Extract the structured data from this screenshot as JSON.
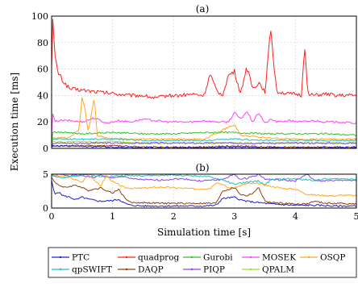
{
  "chart_data": [
    {
      "panel": "a",
      "type": "line",
      "title": "(a)",
      "xlabel": "",
      "ylabel": "Execution time [ms]",
      "xlim": [
        0,
        5
      ],
      "ylim": [
        0,
        100
      ],
      "xticks": [
        "0",
        "1",
        "2",
        "3",
        "4",
        "5"
      ],
      "xticks_visible": false,
      "yticks": [
        "0",
        "20",
        "40",
        "60",
        "80",
        "100"
      ],
      "grid": true,
      "series": [
        {
          "name": "quadprog",
          "color": "#ff2020",
          "x": [
            0,
            0.02,
            0.05,
            0.1,
            0.2,
            0.3,
            0.5,
            0.7,
            0.9,
            1.1,
            1.3,
            1.5,
            1.7,
            1.9,
            2.1,
            2.3,
            2.5,
            2.6,
            2.7,
            2.8,
            2.9,
            3.0,
            3.1,
            3.2,
            3.3,
            3.4,
            3.5,
            3.6,
            3.65,
            3.7,
            3.8,
            3.9,
            4.0,
            4.1,
            4.15,
            4.2,
            4.3,
            4.5,
            4.7,
            5.0
          ],
          "y": [
            62,
            99,
            70,
            58,
            50,
            45,
            44,
            43,
            42,
            41,
            40,
            40,
            38,
            40,
            40,
            41,
            40,
            56,
            44,
            40,
            55,
            58,
            41,
            62,
            45,
            50,
            43,
            92,
            60,
            43,
            42,
            41,
            41,
            40,
            80,
            42,
            40,
            41,
            40,
            40
          ]
        },
        {
          "name": "MOSEK",
          "color": "#ff40ff",
          "x": [
            0,
            0.02,
            0.05,
            0.1,
            0.3,
            0.5,
            0.7,
            0.9,
            1.1,
            1.3,
            1.5,
            1.7,
            1.9,
            2.1,
            2.3,
            2.5,
            2.7,
            2.9,
            3.0,
            3.1,
            3.2,
            3.3,
            3.4,
            3.5,
            3.6,
            3.7,
            3.9,
            4.1,
            4.3,
            4.5,
            4.7,
            5.0
          ],
          "y": [
            10,
            27,
            20,
            21,
            21,
            20,
            23,
            19,
            21,
            20,
            22,
            21,
            20,
            20,
            20,
            21,
            20,
            20,
            27,
            22,
            28,
            20,
            27,
            19,
            22,
            20,
            21,
            20,
            21,
            20,
            20,
            19
          ]
        },
        {
          "name": "Gurobi",
          "color": "#30c030",
          "x": [
            0,
            0.02,
            0.1,
            0.3,
            0.5,
            1.0,
            1.5,
            2.0,
            2.5,
            3.0,
            3.5,
            4.0,
            4.5,
            5.0
          ],
          "y": [
            5,
            13,
            12,
            12,
            11,
            12,
            11,
            11,
            12,
            12,
            11,
            11,
            11,
            10
          ]
        },
        {
          "name": "OSQP",
          "color": "#ffa820",
          "x": [
            0,
            0.02,
            0.3,
            0.45,
            0.5,
            0.55,
            0.6,
            0.7,
            0.75,
            0.9,
            1.2,
            1.5,
            2.0,
            2.5,
            2.9,
            3.0,
            3.1,
            3.3,
            3.5,
            4.0,
            4.5,
            5.0
          ],
          "y": [
            2,
            8,
            8,
            14,
            39,
            30,
            12,
            38,
            10,
            8,
            7,
            7,
            7,
            7,
            16,
            18,
            10,
            9,
            8,
            7,
            7,
            7
          ]
        },
        {
          "name": "qpSWIFT",
          "color": "#20c0c0",
          "x": [
            0,
            0.02,
            0.5,
            1.0,
            1.5,
            2.0,
            2.5,
            3.0,
            3.5,
            4.0,
            4.5,
            5.0
          ],
          "y": [
            2,
            7,
            7,
            7,
            6,
            6,
            6,
            7,
            6,
            6,
            6,
            6
          ]
        },
        {
          "name": "QPALM",
          "color": "#a0e020",
          "x": [
            0,
            0.02,
            0.5,
            1.0,
            1.5,
            2.0,
            2.5,
            3.0,
            3.5,
            4.0,
            4.5,
            5.0
          ],
          "y": [
            2,
            5,
            5,
            5,
            4,
            4,
            4,
            4,
            4,
            4,
            4,
            4
          ]
        },
        {
          "name": "PIQP",
          "color": "#9040ff",
          "x": [
            0,
            0.02,
            0.5,
            1.0,
            1.5,
            2.0,
            2.5,
            3.0,
            3.5,
            4.0,
            4.5,
            5.0
          ],
          "y": [
            2,
            4,
            4,
            4,
            4,
            4,
            4,
            4,
            4,
            4,
            4,
            4
          ]
        },
        {
          "name": "DAQP",
          "color": "#904010",
          "x": [
            0,
            0.02,
            0.5,
            1.0,
            1.5,
            2.0,
            2.5,
            3.0,
            3.5,
            4.0,
            4.5,
            5.0
          ],
          "y": [
            1,
            2,
            2,
            2,
            1,
            1,
            1,
            2,
            1,
            1,
            1,
            1
          ]
        },
        {
          "name": "PTC",
          "color": "#2020d0",
          "x": [
            0,
            0.02,
            0.5,
            1.0,
            1.5,
            2.0,
            2.5,
            3.0,
            3.5,
            4.0,
            4.5,
            5.0
          ],
          "y": [
            0.5,
            2,
            1.5,
            1,
            0.5,
            0.5,
            0.5,
            1,
            0.5,
            0.5,
            0.5,
            0.5
          ]
        }
      ]
    },
    {
      "panel": "b",
      "type": "line",
      "title": "(b)",
      "xlabel": "Simulation time [s]",
      "ylabel": "",
      "xlim": [
        0,
        5
      ],
      "ylim": [
        0,
        5
      ],
      "xticks": [
        "0",
        "1",
        "2",
        "3",
        "4",
        "5"
      ],
      "yticks": [
        "0",
        "5"
      ],
      "grid": true,
      "series": [
        {
          "name": "PIQP",
          "color": "#9040ff",
          "x": [
            0,
            0.05,
            0.1,
            0.3,
            0.5,
            0.7,
            0.8,
            1.0,
            1.2,
            1.3,
            1.5,
            1.7,
            1.9,
            2.0,
            2.2,
            2.4,
            2.6,
            2.8,
            3.0,
            3.1,
            3.2,
            3.4,
            3.5,
            3.6,
            3.8,
            4.0,
            4.2,
            4.3,
            4.5,
            4.7,
            5.0
          ],
          "y": [
            5,
            4.6,
            5,
            4.8,
            4.8,
            4.5,
            4.9,
            4.4,
            4.7,
            4.3,
            4.2,
            4.1,
            4.2,
            4.3,
            4.3,
            4.0,
            4.1,
            4.2,
            5,
            4.2,
            4.4,
            5,
            4.3,
            4.2,
            4.1,
            4.0,
            5,
            4.1,
            4.0,
            4.1,
            4.1
          ]
        },
        {
          "name": "qpSWIFT",
          "color": "#20c0c0",
          "x": [
            0,
            0.05,
            0.2,
            0.4,
            0.6,
            0.8,
            1.0,
            1.2,
            1.5,
            1.8,
            2.0,
            2.2,
            2.5,
            2.8,
            3.0,
            3.2,
            3.4,
            3.5,
            3.6,
            3.8,
            4.0,
            4.3,
            4.5,
            5.0
          ],
          "y": [
            5,
            4.7,
            4.4,
            4.8,
            5,
            4.6,
            4.7,
            4.8,
            4.8,
            4.8,
            4.9,
            4.8,
            4.7,
            4.2,
            3.5,
            3.8,
            4.0,
            3.4,
            4.2,
            4.3,
            4.3,
            4.1,
            4.3,
            4.3
          ]
        },
        {
          "name": "OSQP",
          "color": "#ffa820",
          "x": [
            0,
            0.05,
            0.3,
            0.5,
            0.6,
            0.7,
            0.8,
            0.9,
            1.0,
            1.2,
            1.4,
            1.6,
            1.8,
            2.0,
            2.2,
            2.4,
            2.6,
            2.7,
            2.8,
            2.9,
            3.0,
            3.2,
            3.4,
            3.6,
            3.8,
            4.0,
            4.2,
            4.4,
            4.6,
            4.8,
            5.0
          ],
          "y": [
            5,
            4.8,
            4.5,
            3.8,
            5,
            4.2,
            3.2,
            4.8,
            3.9,
            3.0,
            2.9,
            3.0,
            3.1,
            3.0,
            2.9,
            2.8,
            2.9,
            3.8,
            3.5,
            3.0,
            3.0,
            3.6,
            3.6,
            3.2,
            2.9,
            2.8,
            2.0,
            1.9,
            1.8,
            1.9,
            1.8
          ]
        },
        {
          "name": "DAQP",
          "color": "#904010",
          "x": [
            0,
            0.05,
            0.2,
            0.4,
            0.6,
            0.8,
            1.0,
            1.1,
            1.2,
            1.3,
            1.5,
            1.8,
            2.0,
            2.2,
            2.5,
            2.7,
            2.8,
            3.0,
            3.1,
            3.2,
            3.3,
            3.4,
            3.5,
            3.6,
            3.8,
            4.0,
            4.2,
            4.3,
            4.5,
            4.7,
            5.0
          ],
          "y": [
            4.5,
            3.8,
            3.0,
            3.4,
            2.6,
            3.0,
            2.2,
            2.8,
            1.5,
            0.8,
            0.8,
            0.7,
            0.7,
            0.7,
            0.7,
            0.7,
            2.5,
            3.0,
            2.0,
            1.8,
            2.2,
            3.0,
            1.0,
            0.8,
            0.7,
            0.6,
            0.6,
            1.0,
            0.7,
            0.7,
            0.6
          ]
        },
        {
          "name": "PTC",
          "color": "#2020d0",
          "x": [
            0,
            0.05,
            0.1,
            0.2,
            0.3,
            0.4,
            0.5,
            0.6,
            0.8,
            1.0,
            1.1,
            1.2,
            1.3,
            1.5,
            1.8,
            2.0,
            2.2,
            2.5,
            2.7,
            2.8,
            2.9,
            3.0,
            3.1,
            3.2,
            3.4,
            3.6,
            3.8,
            4.0,
            4.2,
            4.4,
            4.6,
            4.8,
            5.0
          ],
          "y": [
            4.0,
            2.0,
            2.4,
            1.8,
            1.6,
            1.2,
            1.6,
            1.3,
            1.0,
            1.1,
            1.3,
            0.7,
            0.4,
            0.3,
            0.3,
            0.3,
            0.3,
            0.3,
            0.4,
            1.4,
            1.5,
            1.6,
            1.2,
            1.0,
            0.8,
            0.6,
            0.5,
            0.4,
            0.4,
            0.4,
            0.3,
            0.3,
            0.3
          ]
        }
      ]
    }
  ],
  "legend": [
    {
      "name": "PTC",
      "color": "#2020d0"
    },
    {
      "name": "quadprog",
      "color": "#ff2020"
    },
    {
      "name": "Gurobi",
      "color": "#30c030"
    },
    {
      "name": "MOSEK",
      "color": "#ff40ff"
    },
    {
      "name": "OSQP",
      "color": "#ffa820"
    },
    {
      "name": "qpSWIFT",
      "color": "#20c0c0"
    },
    {
      "name": "DAQP",
      "color": "#904010"
    },
    {
      "name": "PIQP",
      "color": "#9040ff"
    },
    {
      "name": "QPALM",
      "color": "#a0e020"
    }
  ]
}
